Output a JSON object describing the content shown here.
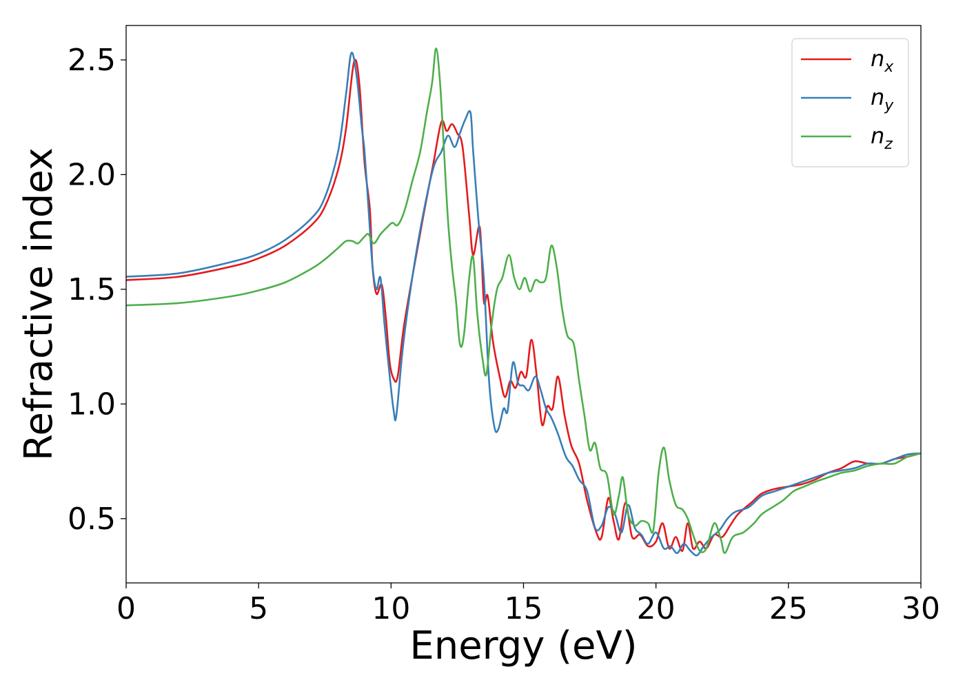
{
  "chart_data": {
    "type": "line",
    "title": "",
    "xlabel": "Energy (eV)",
    "ylabel": "Refractive index",
    "xlim": [
      0,
      30
    ],
    "ylim": [
      0.22,
      2.65
    ],
    "xticks": [
      0,
      5,
      10,
      15,
      20,
      25,
      30
    ],
    "xtick_labels": [
      "0",
      "5",
      "10",
      "15",
      "20",
      "25",
      "30"
    ],
    "yticks": [
      0.5,
      1.0,
      1.5,
      2.0,
      2.5
    ],
    "ytick_labels": [
      "0.5",
      "1.0",
      "1.5",
      "2.0",
      "2.5"
    ],
    "grid": false,
    "legend_position": "top-right",
    "series": [
      {
        "name": "n_x",
        "label_base": "n",
        "label_sub": "x",
        "color": "#e41a1c",
        "points": [
          [
            0,
            1.54
          ],
          [
            2,
            1.555
          ],
          [
            4,
            1.6
          ],
          [
            5,
            1.635
          ],
          [
            6,
            1.69
          ],
          [
            7,
            1.78
          ],
          [
            7.5,
            1.86
          ],
          [
            8,
            2.02
          ],
          [
            8.3,
            2.2
          ],
          [
            8.6,
            2.49
          ],
          [
            8.8,
            2.4
          ],
          [
            9.0,
            2.05
          ],
          [
            9.2,
            1.85
          ],
          [
            9.3,
            1.6
          ],
          [
            9.45,
            1.48
          ],
          [
            9.65,
            1.52
          ],
          [
            9.8,
            1.38
          ],
          [
            9.95,
            1.18
          ],
          [
            10.1,
            1.11
          ],
          [
            10.25,
            1.12
          ],
          [
            10.5,
            1.35
          ],
          [
            11.0,
            1.68
          ],
          [
            11.3,
            1.87
          ],
          [
            11.6,
            2.05
          ],
          [
            11.9,
            2.23
          ],
          [
            12.1,
            2.19
          ],
          [
            12.3,
            2.22
          ],
          [
            12.5,
            2.18
          ],
          [
            12.7,
            2.12
          ],
          [
            12.95,
            1.82
          ],
          [
            13.1,
            1.65
          ],
          [
            13.35,
            1.77
          ],
          [
            13.5,
            1.45
          ],
          [
            13.65,
            1.47
          ],
          [
            13.85,
            1.27
          ],
          [
            14.1,
            1.12
          ],
          [
            14.3,
            1.03
          ],
          [
            14.5,
            1.1
          ],
          [
            14.7,
            1.07
          ],
          [
            14.9,
            1.14
          ],
          [
            15.1,
            1.12
          ],
          [
            15.3,
            1.28
          ],
          [
            15.5,
            1.12
          ],
          [
            15.7,
            0.91
          ],
          [
            15.9,
            0.99
          ],
          [
            16.1,
            0.98
          ],
          [
            16.3,
            1.12
          ],
          [
            16.55,
            0.95
          ],
          [
            16.8,
            0.82
          ],
          [
            17.1,
            0.74
          ],
          [
            17.4,
            0.58
          ],
          [
            17.75,
            0.44
          ],
          [
            17.95,
            0.42
          ],
          [
            18.2,
            0.59
          ],
          [
            18.4,
            0.49
          ],
          [
            18.6,
            0.41
          ],
          [
            18.85,
            0.57
          ],
          [
            19.1,
            0.42
          ],
          [
            19.4,
            0.43
          ],
          [
            19.7,
            0.38
          ],
          [
            20.0,
            0.4
          ],
          [
            20.25,
            0.48
          ],
          [
            20.5,
            0.37
          ],
          [
            20.75,
            0.42
          ],
          [
            21.0,
            0.36
          ],
          [
            21.2,
            0.48
          ],
          [
            21.4,
            0.37
          ],
          [
            21.65,
            0.4
          ],
          [
            21.9,
            0.37
          ],
          [
            22.2,
            0.43
          ],
          [
            22.5,
            0.42
          ],
          [
            22.8,
            0.47
          ],
          [
            23.1,
            0.52
          ],
          [
            23.6,
            0.57
          ],
          [
            24.0,
            0.61
          ],
          [
            24.5,
            0.63
          ],
          [
            25.0,
            0.64
          ],
          [
            25.5,
            0.65
          ],
          [
            26.0,
            0.67
          ],
          [
            26.5,
            0.7
          ],
          [
            27.0,
            0.72
          ],
          [
            27.5,
            0.75
          ],
          [
            28.0,
            0.74
          ],
          [
            28.5,
            0.74
          ],
          [
            29.0,
            0.76
          ],
          [
            29.5,
            0.77
          ],
          [
            30.0,
            0.785
          ]
        ]
      },
      {
        "name": "n_y",
        "label_base": "n",
        "label_sub": "y",
        "color": "#377eb8",
        "points": [
          [
            0,
            1.555
          ],
          [
            2,
            1.57
          ],
          [
            4,
            1.62
          ],
          [
            5,
            1.655
          ],
          [
            6,
            1.715
          ],
          [
            7,
            1.81
          ],
          [
            7.5,
            1.9
          ],
          [
            8,
            2.1
          ],
          [
            8.3,
            2.35
          ],
          [
            8.5,
            2.53
          ],
          [
            8.7,
            2.43
          ],
          [
            8.9,
            2.2
          ],
          [
            9.0,
            2.1
          ],
          [
            9.15,
            1.85
          ],
          [
            9.3,
            1.6
          ],
          [
            9.45,
            1.5
          ],
          [
            9.6,
            1.55
          ],
          [
            9.75,
            1.35
          ],
          [
            9.95,
            1.12
          ],
          [
            10.1,
            0.97
          ],
          [
            10.2,
            0.95
          ],
          [
            10.45,
            1.25
          ],
          [
            10.8,
            1.55
          ],
          [
            11.2,
            1.82
          ],
          [
            11.6,
            2.03
          ],
          [
            11.9,
            2.1
          ],
          [
            12.15,
            2.17
          ],
          [
            12.4,
            2.12
          ],
          [
            12.6,
            2.18
          ],
          [
            12.8,
            2.24
          ],
          [
            13.0,
            2.27
          ],
          [
            13.1,
            2.1
          ],
          [
            13.3,
            1.8
          ],
          [
            13.5,
            1.55
          ],
          [
            13.7,
            1.1
          ],
          [
            13.9,
            0.9
          ],
          [
            14.05,
            0.89
          ],
          [
            14.25,
            0.98
          ],
          [
            14.4,
            0.97
          ],
          [
            14.6,
            1.18
          ],
          [
            14.8,
            1.09
          ],
          [
            15.0,
            1.08
          ],
          [
            15.2,
            1.06
          ],
          [
            15.45,
            1.12
          ],
          [
            15.65,
            1.06
          ],
          [
            15.85,
            0.98
          ],
          [
            16.05,
            0.94
          ],
          [
            16.3,
            0.87
          ],
          [
            16.6,
            0.77
          ],
          [
            16.85,
            0.73
          ],
          [
            17.1,
            0.67
          ],
          [
            17.4,
            0.62
          ],
          [
            17.7,
            0.46
          ],
          [
            17.95,
            0.47
          ],
          [
            18.2,
            0.55
          ],
          [
            18.45,
            0.52
          ],
          [
            18.7,
            0.44
          ],
          [
            18.95,
            0.56
          ],
          [
            19.2,
            0.46
          ],
          [
            19.45,
            0.43
          ],
          [
            19.7,
            0.39
          ],
          [
            20.0,
            0.44
          ],
          [
            20.3,
            0.37
          ],
          [
            20.55,
            0.38
          ],
          [
            20.8,
            0.35
          ],
          [
            21.05,
            0.39
          ],
          [
            21.3,
            0.36
          ],
          [
            21.55,
            0.34
          ],
          [
            21.8,
            0.38
          ],
          [
            22.1,
            0.42
          ],
          [
            22.4,
            0.45
          ],
          [
            22.7,
            0.5
          ],
          [
            23.0,
            0.53
          ],
          [
            23.5,
            0.55
          ],
          [
            24.0,
            0.6
          ],
          [
            24.5,
            0.62
          ],
          [
            25.0,
            0.64
          ],
          [
            25.5,
            0.66
          ],
          [
            26.0,
            0.68
          ],
          [
            26.5,
            0.7
          ],
          [
            27.0,
            0.71
          ],
          [
            27.5,
            0.72
          ],
          [
            28.0,
            0.74
          ],
          [
            28.5,
            0.74
          ],
          [
            29.0,
            0.76
          ],
          [
            29.5,
            0.78
          ],
          [
            30.0,
            0.785
          ]
        ]
      },
      {
        "name": "n_z",
        "label_base": "n",
        "label_sub": "z",
        "color": "#4daf4a",
        "points": [
          [
            0,
            1.43
          ],
          [
            2,
            1.44
          ],
          [
            4,
            1.47
          ],
          [
            5,
            1.495
          ],
          [
            6,
            1.53
          ],
          [
            7,
            1.59
          ],
          [
            7.5,
            1.63
          ],
          [
            8,
            1.68
          ],
          [
            8.3,
            1.71
          ],
          [
            8.55,
            1.71
          ],
          [
            8.75,
            1.7
          ],
          [
            9.0,
            1.73
          ],
          [
            9.15,
            1.74
          ],
          [
            9.35,
            1.7
          ],
          [
            9.6,
            1.74
          ],
          [
            9.85,
            1.77
          ],
          [
            10.05,
            1.79
          ],
          [
            10.25,
            1.78
          ],
          [
            10.5,
            1.84
          ],
          [
            10.8,
            1.97
          ],
          [
            11.1,
            2.1
          ],
          [
            11.35,
            2.27
          ],
          [
            11.55,
            2.4
          ],
          [
            11.7,
            2.55
          ],
          [
            11.85,
            2.4
          ],
          [
            12.0,
            2.1
          ],
          [
            12.15,
            1.8
          ],
          [
            12.3,
            1.6
          ],
          [
            12.45,
            1.45
          ],
          [
            12.6,
            1.26
          ],
          [
            12.75,
            1.3
          ],
          [
            12.95,
            1.55
          ],
          [
            13.1,
            1.64
          ],
          [
            13.25,
            1.4
          ],
          [
            13.45,
            1.2
          ],
          [
            13.6,
            1.13
          ],
          [
            13.8,
            1.35
          ],
          [
            14.0,
            1.5
          ],
          [
            14.2,
            1.55
          ],
          [
            14.45,
            1.65
          ],
          [
            14.65,
            1.55
          ],
          [
            14.85,
            1.5
          ],
          [
            15.05,
            1.55
          ],
          [
            15.25,
            1.49
          ],
          [
            15.45,
            1.54
          ],
          [
            15.65,
            1.53
          ],
          [
            15.85,
            1.55
          ],
          [
            16.05,
            1.69
          ],
          [
            16.25,
            1.6
          ],
          [
            16.45,
            1.42
          ],
          [
            16.65,
            1.3
          ],
          [
            16.9,
            1.26
          ],
          [
            17.1,
            1.1
          ],
          [
            17.3,
            0.95
          ],
          [
            17.5,
            0.8
          ],
          [
            17.7,
            0.83
          ],
          [
            17.9,
            0.72
          ],
          [
            18.15,
            0.69
          ],
          [
            18.4,
            0.52
          ],
          [
            18.6,
            0.6
          ],
          [
            18.75,
            0.68
          ],
          [
            18.95,
            0.52
          ],
          [
            19.2,
            0.47
          ],
          [
            19.45,
            0.49
          ],
          [
            19.7,
            0.48
          ],
          [
            19.9,
            0.45
          ],
          [
            20.1,
            0.7
          ],
          [
            20.3,
            0.81
          ],
          [
            20.5,
            0.67
          ],
          [
            20.75,
            0.56
          ],
          [
            21.0,
            0.54
          ],
          [
            21.2,
            0.5
          ],
          [
            21.4,
            0.43
          ],
          [
            21.65,
            0.36
          ],
          [
            21.9,
            0.37
          ],
          [
            22.2,
            0.48
          ],
          [
            22.45,
            0.41
          ],
          [
            22.6,
            0.35
          ],
          [
            22.9,
            0.42
          ],
          [
            23.3,
            0.44
          ],
          [
            23.7,
            0.48
          ],
          [
            24.0,
            0.52
          ],
          [
            24.4,
            0.55
          ],
          [
            24.8,
            0.58
          ],
          [
            25.2,
            0.62
          ],
          [
            25.6,
            0.64
          ],
          [
            26.0,
            0.66
          ],
          [
            26.5,
            0.68
          ],
          [
            27.0,
            0.7
          ],
          [
            27.5,
            0.71
          ],
          [
            28.0,
            0.73
          ],
          [
            28.5,
            0.74
          ],
          [
            29.0,
            0.74
          ],
          [
            29.5,
            0.77
          ],
          [
            30.0,
            0.785
          ]
        ]
      }
    ]
  }
}
